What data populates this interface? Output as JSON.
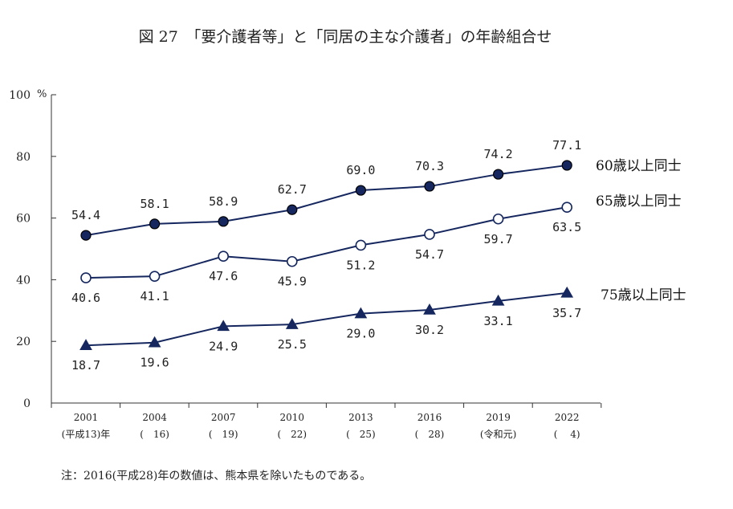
{
  "chart_data": {
    "type": "line",
    "title": "図 27　「要介護者等」と「同居の主な介護者」の年齢組合せ",
    "yunit": "%",
    "ylim": [
      0,
      100
    ],
    "yticks": [
      "0",
      "20",
      "40",
      "60",
      "80",
      "100"
    ],
    "x": [
      2001,
      2004,
      2007,
      2010,
      2013,
      2016,
      2019,
      2022
    ],
    "xlabels": [
      {
        "year": "2001",
        "era": "(平成13)年"
      },
      {
        "year": "2004",
        "era": "(　16)"
      },
      {
        "year": "2007",
        "era": "(　19)"
      },
      {
        "year": "2010",
        "era": "(　22)"
      },
      {
        "year": "2013",
        "era": "(　25)"
      },
      {
        "year": "2016",
        "era": "(　28)"
      },
      {
        "year": "2019",
        "era": "(令和元)"
      },
      {
        "year": "2022",
        "era": "(　 4)"
      }
    ],
    "series": [
      {
        "name": "60歳以上同士",
        "marker": "filled-circle",
        "values": [
          54.4,
          58.1,
          58.9,
          62.7,
          69.0,
          70.3,
          74.2,
          77.1
        ],
        "labels": [
          "54.4",
          "58.1",
          "58.9",
          "62.7",
          "69.0",
          "70.3",
          "74.2",
          "77.1"
        ],
        "label_position": "above"
      },
      {
        "name": "65歳以上同士",
        "marker": "open-circle",
        "values": [
          40.6,
          41.1,
          47.6,
          45.9,
          51.2,
          54.7,
          59.7,
          63.5
        ],
        "labels": [
          "40.6",
          "41.1",
          "47.6",
          "45.9",
          "51.2",
          "54.7",
          "59.7",
          "63.5"
        ],
        "label_position": "below"
      },
      {
        "name": "75歳以上同士",
        "marker": "filled-triangle",
        "values": [
          18.7,
          19.6,
          24.9,
          25.5,
          29.0,
          30.2,
          33.1,
          35.7
        ],
        "labels": [
          "18.7",
          "19.6",
          "24.9",
          "25.5",
          "29.0",
          "30.2",
          "33.1",
          "35.7"
        ],
        "label_position": "below"
      }
    ],
    "legend": "series labels at right end of lines",
    "grid": false
  },
  "colors": {
    "line": "#15275e",
    "marker_fill": "#15275e",
    "axis": "#333333"
  },
  "note": "注：2016(平成28)年の数値は、熊本県を除いたものである。"
}
